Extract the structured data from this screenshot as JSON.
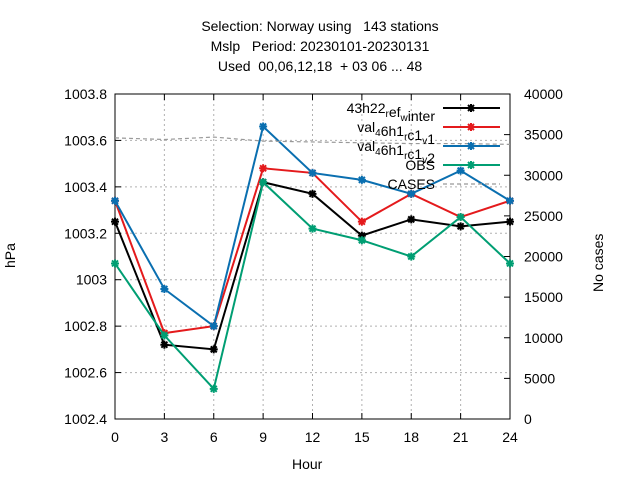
{
  "header": {
    "line1": "Selection: Norway using   143 stations",
    "line2": "Mslp   Period: 20230101-20230131",
    "line3": "Used  00,06,12,18  + 03 06 ... 48"
  },
  "chart_data": {
    "type": "line",
    "xlabel": "Hour",
    "ylabel": "hPa",
    "y2label": "No cases",
    "x": [
      0,
      3,
      6,
      9,
      12,
      15,
      18,
      21,
      24
    ],
    "xlim": [
      0,
      24
    ],
    "xticks": [
      "0",
      "3",
      "6",
      "9",
      "12",
      "15",
      "18",
      "21",
      "24"
    ],
    "ylim": [
      1002.4,
      1003.8
    ],
    "yticks": [
      "1002.4",
      "1002.6",
      "1002.8",
      "1003",
      "1003.2",
      "1003.4",
      "1003.6",
      "1003.8"
    ],
    "y2lim": [
      0,
      40000
    ],
    "y2ticks": [
      "0",
      "5000",
      "10000",
      "15000",
      "20000",
      "25000",
      "30000",
      "35000",
      "40000"
    ],
    "grid": true,
    "legend_position": "top-right",
    "series": [
      {
        "name": "43h22 r ef w inter",
        "legend": {
          "parts": [
            {
              "t": "43h22"
            },
            {
              "t": "r",
              "sub": true
            },
            {
              "t": "ef"
            },
            {
              "t": "w",
              "sub": true
            },
            {
              "t": "inter"
            }
          ]
        },
        "color": "#000000",
        "values": [
          1003.25,
          1002.72,
          1002.7,
          1003.42,
          1003.37,
          1003.19,
          1003.26,
          1003.23,
          1003.25
        ]
      },
      {
        "name": "val 4 6h1 r c1 v 1",
        "legend": {
          "parts": [
            {
              "t": "val"
            },
            {
              "t": "4",
              "sub": true
            },
            {
              "t": "6h1"
            },
            {
              "t": "r",
              "sub": true
            },
            {
              "t": "c1"
            },
            {
              "t": "v",
              "sub": true
            },
            {
              "t": "1"
            }
          ]
        },
        "color": "#e41a1c",
        "values": [
          1003.34,
          1002.77,
          1002.8,
          1003.48,
          1003.46,
          1003.25,
          1003.37,
          1003.27,
          1003.34
        ]
      },
      {
        "name": "val 4 6h1 r c1 v 2",
        "legend": {
          "parts": [
            {
              "t": "val"
            },
            {
              "t": "4",
              "sub": true
            },
            {
              "t": "6h1"
            },
            {
              "t": "r",
              "sub": true
            },
            {
              "t": "c1"
            },
            {
              "t": "v",
              "sub": true
            },
            {
              "t": "2"
            }
          ]
        },
        "color": "#0a6fb0",
        "values": [
          1003.34,
          1002.96,
          1002.8,
          1003.66,
          1003.46,
          1003.43,
          1003.37,
          1003.47,
          1003.34
        ]
      },
      {
        "name": "OBS",
        "legend": {
          "parts": [
            {
              "t": "OBS"
            }
          ]
        },
        "color": "#009e73",
        "values": [
          1003.07,
          1002.76,
          1002.53,
          1003.42,
          1003.22,
          1003.17,
          1003.1,
          1003.27,
          1003.07
        ]
      },
      {
        "name": "CASES",
        "legend": {
          "parts": [
            {
              "t": "CASES"
            }
          ]
        },
        "color": "#999999",
        "dashed": true,
        "axis": "y2",
        "values": [
          34600,
          34400,
          34700,
          34200,
          34100,
          34000,
          33900,
          33900,
          33800
        ]
      }
    ]
  }
}
